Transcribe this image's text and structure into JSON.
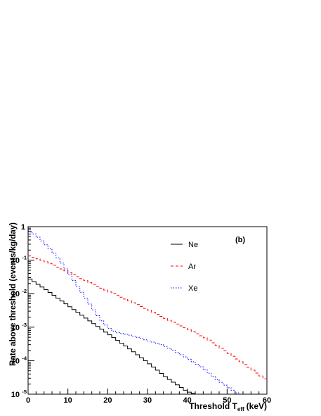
{
  "chart_data": {
    "type": "line",
    "step": true,
    "annotation": "(b)",
    "xlabel": "Threshold T",
    "xlabel_subscript": "eff",
    "xlabel_unit": "(keV)",
    "ylabel": "Rate above threshold (events/kg/day)",
    "xlim": [
      0,
      60
    ],
    "ylim": [
      1e-05,
      1
    ],
    "yscale": "log",
    "grid": false,
    "legend_position": "top-right",
    "x_ticks": [
      0,
      10,
      20,
      30,
      40,
      50,
      60
    ],
    "x_tick_labels": [
      "0",
      "10",
      "20",
      "30",
      "40",
      "50",
      "60"
    ],
    "y_ticks": [
      {
        "value": 1,
        "base": "1",
        "exp": ""
      },
      {
        "value": 0.1,
        "base": "10",
        "exp": "-1"
      },
      {
        "value": 0.01,
        "base": "10",
        "exp": "-2"
      },
      {
        "value": 0.001,
        "base": "10",
        "exp": "-3"
      },
      {
        "value": 0.0001,
        "base": "10",
        "exp": "-4"
      },
      {
        "value": 1e-05,
        "base": "10",
        "exp": "-5"
      }
    ],
    "series": [
      {
        "name": "Ne",
        "color": "#000000",
        "dash": "none",
        "x": [
          0,
          5,
          10,
          15,
          20,
          25,
          30,
          35,
          40,
          42
        ],
        "y": [
          0.03,
          0.012,
          0.0045,
          0.0017,
          0.00065,
          0.00025,
          9e-05,
          3e-05,
          1.2e-05,
          1e-05
        ]
      },
      {
        "name": "Ar",
        "color": "#ff0000",
        "dash": "4,3",
        "x": [
          0,
          5,
          10,
          15,
          20,
          25,
          30,
          35,
          40,
          45,
          50,
          55,
          60
        ],
        "y": [
          0.14,
          0.085,
          0.045,
          0.023,
          0.012,
          0.0065,
          0.0034,
          0.0017,
          0.0009,
          0.00045,
          0.00018,
          7e-05,
          2.6e-05
        ]
      },
      {
        "name": "Xe",
        "color": "#0000ff",
        "dash": "1.5,2",
        "x": [
          0,
          2,
          4,
          6,
          8,
          10,
          12,
          14,
          16,
          18,
          20,
          22,
          25,
          28,
          30,
          33,
          36,
          40,
          44,
          47,
          50,
          52,
          53
        ],
        "y": [
          0.8,
          0.55,
          0.33,
          0.19,
          0.1,
          0.045,
          0.02,
          0.009,
          0.004,
          0.0018,
          0.001,
          0.0007,
          0.0006,
          0.00048,
          0.0004,
          0.00032,
          0.00022,
          0.00012,
          6e-05,
          3e-05,
          1.7e-05,
          1.2e-05,
          1e-05
        ]
      }
    ]
  }
}
